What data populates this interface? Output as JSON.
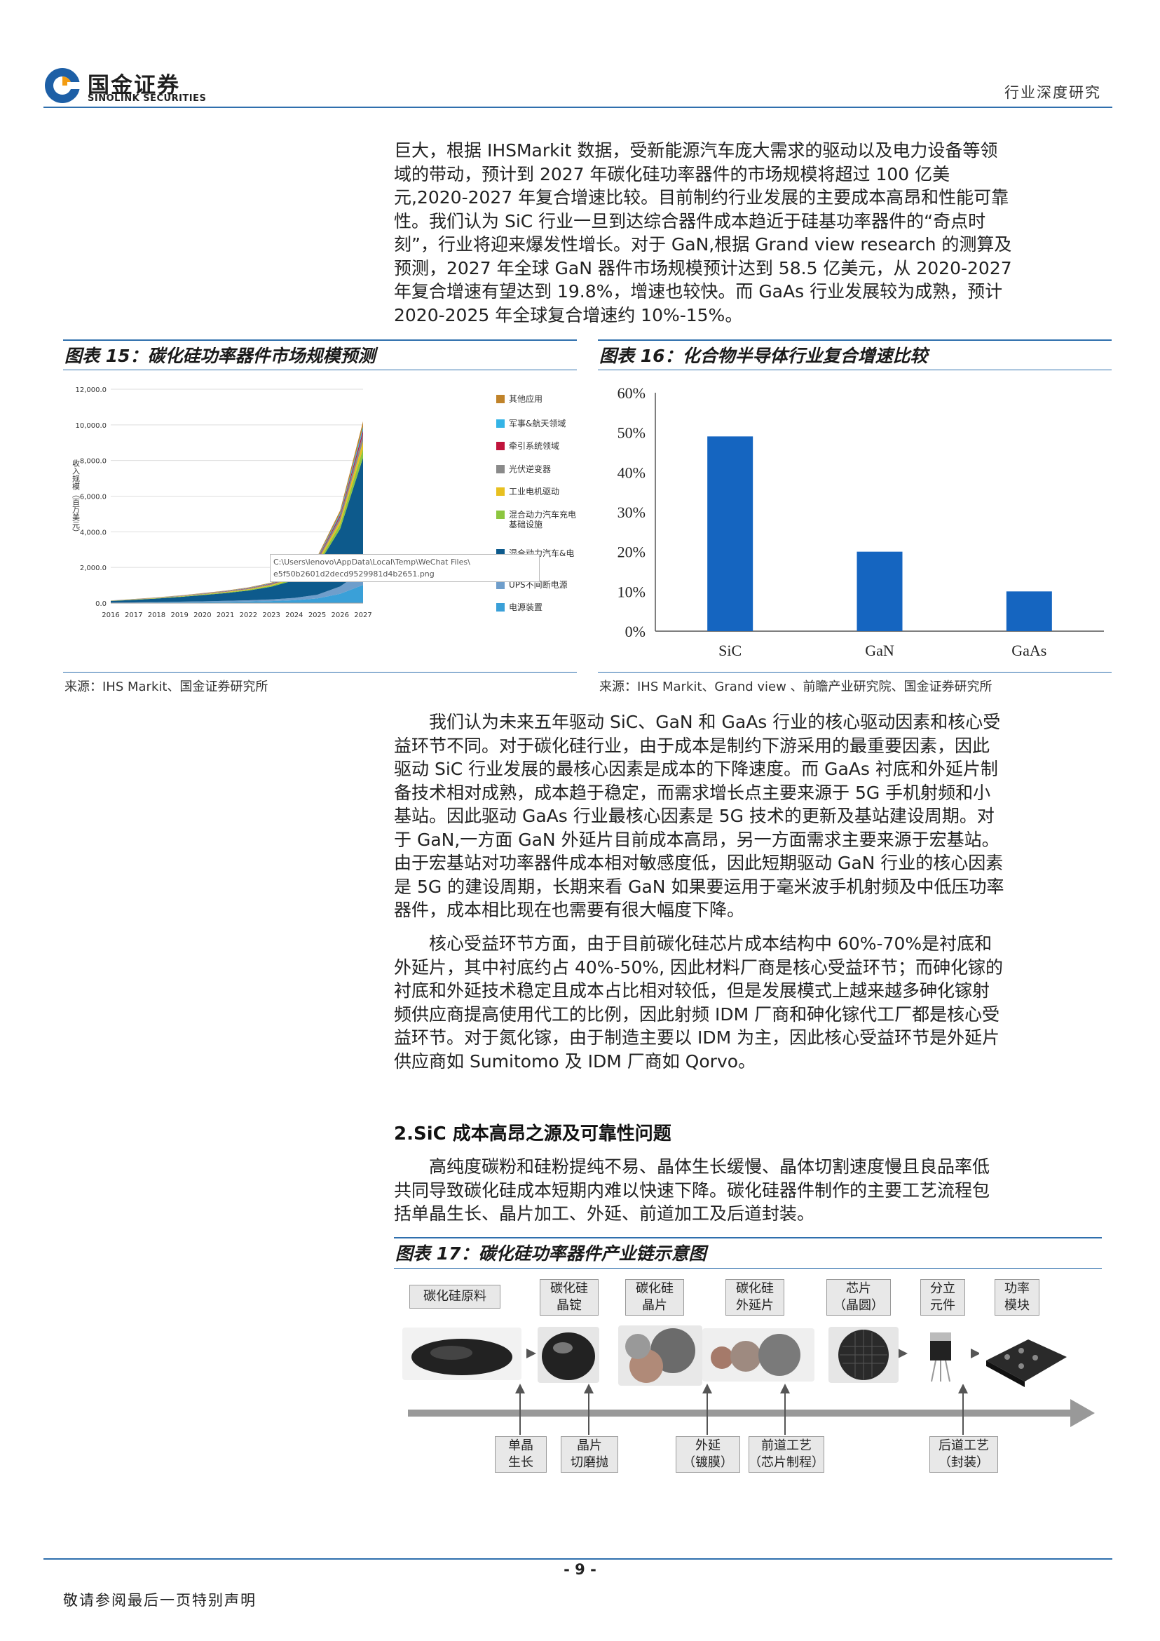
{
  "header": {
    "logo_cn": "国金证券",
    "logo_en": "SINOLINK SECURITIES",
    "report_type": "行业深度研究"
  },
  "intro_paragraph": [
    "巨大，根据 IHSMarkit 数据，受新能源汽车庞大需求的驱动以及电力设备等领",
    "域的带动，预计到 2027 年碳化硅功率器件的市场规模将超过 100 亿美",
    "元,2020-2027 年复合增速比较。目前制约行业发展的主要成本高昂和性能可靠",
    "性。我们认为 SiC 行业一旦到达综合器件成本趋近于硅基功率器件的“奇点时",
    "刻”，行业将迎来爆发性增长。对于 GaN,根据 Grand view research 的测算及",
    "预测，2027 年全球 GaN 器件市场规模预计达到 58.5 亿美元，从 2020-2027",
    "年复合增速有望达到 19.8%，增速也较快。而 GaAs 行业发展较为成熟，预计",
    "2020-2025 年全球复合增速约 10%-15%。"
  ],
  "fig15": {
    "title": "图表 15：碳化硅功率器件市场规模预测",
    "source": "来源：IHS Markit、国金证券研究所",
    "tooltip_line1": "C:\\Users\\lenovo\\AppData\\Local\\Temp\\WeChat Files\\",
    "tooltip_line2": "e5f50b2601d2decd9529981d4b2651.png"
  },
  "fig16": {
    "title": "图表 16：化合物半导体行业复合增速比较",
    "source": "来源：IHS Markit、Grand view 、前瞻产业研究院、国金证券研究所"
  },
  "chart_data": [
    {
      "type": "area",
      "title": "",
      "ylabel": "收入规模（百万美元）",
      "xlabel": "",
      "x": [
        "2016",
        "2017",
        "2018",
        "2019",
        "2020",
        "2021",
        "2022",
        "2023",
        "2024",
        "2025",
        "2026",
        "2027"
      ],
      "ylim": [
        0,
        12000
      ],
      "yticks": [
        "12,000.0",
        "10,000.0",
        "8,000.0",
        "6,000.0",
        "4,000.0",
        "2,000.0",
        "0.0"
      ],
      "legend_position": "right",
      "series": [
        {
          "name": "其他应用",
          "color": "#c0832a"
        },
        {
          "name": "军事&航天领域",
          "color": "#34b4e6"
        },
        {
          "name": "牵引系统领域",
          "color": "#c0143c"
        },
        {
          "name": "光伏逆变器",
          "color": "#8a8a8a"
        },
        {
          "name": "工业电机驱动",
          "color": "#e8c020"
        },
        {
          "name": "混合动力汽车充电基础设施",
          "color": "#8cc63f"
        },
        {
          "name": "混合动力汽车&电动汽车",
          "color": "#0d5a8c"
        },
        {
          "name": "UPS不间断电源",
          "color": "#6f9ecb"
        },
        {
          "name": "电源装置",
          "color": "#3aa0d8"
        }
      ],
      "total_values": [
        150,
        230,
        320,
        430,
        560,
        700,
        880,
        1150,
        1600,
        2600,
        5200,
        10200
      ]
    },
    {
      "type": "bar",
      "title": "",
      "categories": [
        "SiC",
        "GaN",
        "GaAs"
      ],
      "values": [
        49,
        20,
        10
      ],
      "ylim": [
        0,
        60
      ],
      "yticks": [
        "60%",
        "50%",
        "40%",
        "30%",
        "20%",
        "10%",
        "0%"
      ],
      "bar_color": "#1565c0",
      "grid": false
    }
  ],
  "para2": [
    "我们认为未来五年驱动 SiC、GaN 和 GaAs 行业的核心驱动因素和核心受",
    "益环节不同。对于碳化硅行业，由于成本是制约下游采用的最重要因素，因此",
    "驱动 SiC 行业发展的最核心因素是成本的下降速度。而 GaAs 衬底和外延片制",
    "备技术相对成熟，成本趋于稳定，而需求增长点主要来源于 5G 手机射频和小",
    "基站。因此驱动 GaAs 行业最核心因素是 5G 技术的更新及基站建设周期。对",
    "于 GaN,一方面 GaN 外延片目前成本高昂，另一方面需求主要来源于宏基站。",
    "由于宏基站对功率器件成本相对敏感度低，因此短期驱动 GaN 行业的核心因素",
    "是 5G 的建设周期，长期来看 GaN 如果要运用于毫米波手机射频及中低压功率",
    "器件，成本相比现在也需要有很大幅度下降。"
  ],
  "para3": [
    "核心受益环节方面，由于目前碳化硅芯片成本结构中 60%-70%是衬底和",
    "外延片，其中衬底约占 40%-50%, 因此材料厂商是核心受益环节；而砷化镓的",
    "衬底和外延技术稳定且成本占比相对较低，但是发展模式上越来越多砷化镓射",
    "频供应商提高使用代工的比例，因此射频 IDM 厂商和砷化镓代工厂都是核心受",
    "益环节。对于氮化镓，由于制造主要以 IDM 为主，因此核心受益环节是外延片",
    "供应商如 Sumitomo 及 IDM 厂商如 Qorvo。"
  ],
  "section2": {
    "title": "2.SiC 成本高昂之源及可靠性问题",
    "para": [
      "高纯度碳粉和硅粉提纯不易、晶体生长缓慢、晶体切割速度慢且良品率低",
      "共同导致碳化硅成本短期内难以快速下降。碳化硅器件制作的主要工艺流程包",
      "括单晶生长、晶片加工、外延、前道加工及后道封装。"
    ]
  },
  "fig17": {
    "title": "图表 17：碳化硅功率器件产业链示意图",
    "top_labels": [
      "碳化硅原料",
      "碳化硅\n晶锭",
      "碳化硅\n晶片",
      "碳化硅\n外延片",
      "芯片\n（晶圆）",
      "分立\n元件",
      "功率\n模块"
    ],
    "bottom_labels": [
      "单晶\n生长",
      "晶片\n切磨抛",
      "外延\n（镀膜）",
      "前道工艺\n（芯片制程）",
      "后道工艺\n（封装）"
    ]
  },
  "footer": {
    "page": "- 9 -",
    "note": "敬请参阅最后一页特别声明"
  }
}
